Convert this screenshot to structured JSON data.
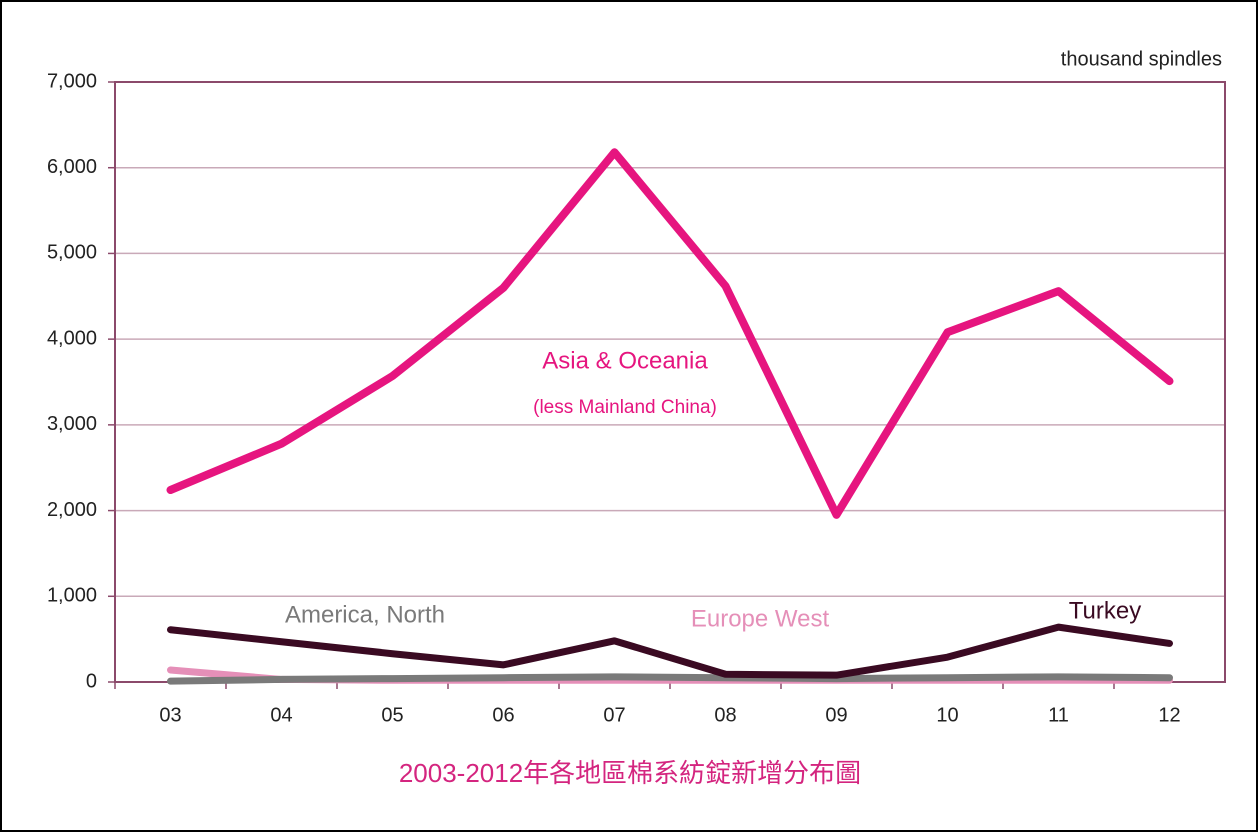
{
  "chart_data": {
    "type": "line",
    "title": "2003-2012年各地區棉系紡錠新增分布圖",
    "y_axis_label": "thousand spindles",
    "annotations": [
      "(less Mainland China)"
    ],
    "categories": [
      "03",
      "04",
      "05",
      "06",
      "07",
      "08",
      "09",
      "10",
      "11",
      "12"
    ],
    "series": [
      {
        "name": "Asia & Oceania",
        "color": "#e6157f",
        "values": [
          2240,
          2780,
          3570,
          4600,
          6180,
          4620,
          1950,
          4080,
          4560,
          3510
        ]
      },
      {
        "name": "Turkey",
        "color": "#3a0a22",
        "values": [
          610,
          470,
          330,
          200,
          480,
          90,
          80,
          290,
          640,
          450
        ]
      },
      {
        "name": "America, North",
        "color": "#7a7a7a",
        "values": [
          10,
          30,
          40,
          50,
          60,
          50,
          40,
          50,
          60,
          50
        ]
      },
      {
        "name": "Europe West",
        "color": "#e58fb8",
        "values": [
          140,
          30,
          20,
          20,
          20,
          20,
          20,
          20,
          20,
          20
        ]
      }
    ],
    "ylim": [
      0,
      7000
    ],
    "yticks": [
      0,
      {
        "value": 1000,
        "label": "1,000"
      },
      {
        "value": 2000,
        "label": "2,000"
      },
      {
        "value": 3000,
        "label": "3,000"
      },
      {
        "value": 4000,
        "label": "4,000"
      },
      {
        "value": 5000,
        "label": "5,000"
      },
      {
        "value": 6000,
        "label": "6,000"
      },
      {
        "value": 7000,
        "label": "7,000"
      }
    ],
    "grid": true
  }
}
